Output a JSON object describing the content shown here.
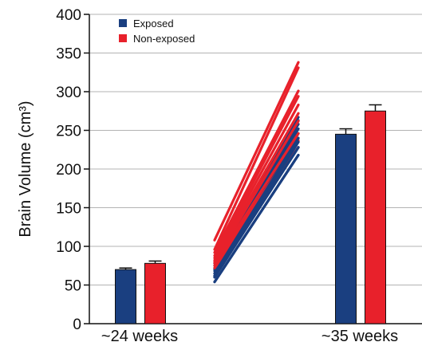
{
  "chart_data": {
    "type": "bar",
    "title": "",
    "xlabel": "",
    "ylabel": "Brain Volume (cm³)",
    "ylim": [
      0,
      400
    ],
    "yticks": [
      0,
      50,
      100,
      150,
      200,
      250,
      300,
      350,
      400
    ],
    "ytick_labels": [
      "0",
      "50",
      "100",
      "150",
      "200",
      "250",
      "300",
      "350",
      "400"
    ],
    "grid": true,
    "legend_position": "top-left",
    "categories": [
      "~24 weeks",
      "~35 weeks"
    ],
    "series": [
      {
        "name": "Exposed",
        "color": "#1a3f80",
        "values": [
          70,
          245
        ],
        "errors": [
          2,
          7
        ],
        "individual_trajectories": [
          [
            54,
            218
          ],
          [
            60,
            228
          ],
          [
            62,
            235
          ],
          [
            65,
            240
          ],
          [
            68,
            246
          ],
          [
            70,
            252
          ],
          [
            72,
            258
          ],
          [
            75,
            263
          ],
          [
            78,
            267
          ]
        ]
      },
      {
        "name": "Non-exposed",
        "color": "#e8212b",
        "values": [
          78,
          275
        ],
        "errors": [
          3,
          8
        ],
        "individual_trajectories": [
          [
            72,
            228
          ],
          [
            75,
            237
          ],
          [
            78,
            246
          ],
          [
            80,
            262
          ],
          [
            82,
            272
          ],
          [
            85,
            283
          ],
          [
            88,
            294
          ],
          [
            92,
            301
          ],
          [
            96,
            331
          ],
          [
            108,
            338
          ]
        ]
      }
    ]
  }
}
